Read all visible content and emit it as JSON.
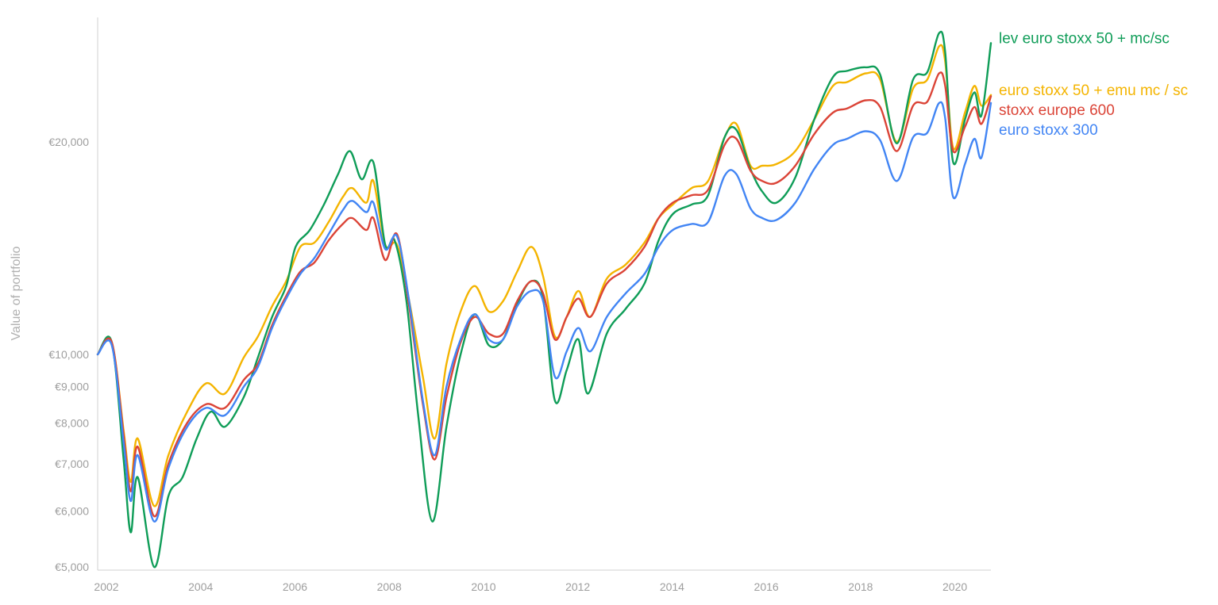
{
  "chart_data": {
    "type": "line",
    "title": "",
    "xlabel": "",
    "ylabel": "Value of portfolio",
    "y_scale": "log",
    "ylim": [
      4950,
      30000
    ],
    "xlim": [
      2002.0,
      2020.95
    ],
    "x_ticks": [
      {
        "value": 2002,
        "label": "2002"
      },
      {
        "value": 2004,
        "label": "2004"
      },
      {
        "value": 2006,
        "label": "2006"
      },
      {
        "value": 2008,
        "label": "2008"
      },
      {
        "value": 2010,
        "label": "2010"
      },
      {
        "value": 2012,
        "label": "2012"
      },
      {
        "value": 2014,
        "label": "2014"
      },
      {
        "value": 2016,
        "label": "2016"
      },
      {
        "value": 2018,
        "label": "2018"
      },
      {
        "value": 2020,
        "label": "2020"
      }
    ],
    "y_ticks": [
      {
        "value": 5000,
        "label": "€5,000"
      },
      {
        "value": 6000,
        "label": "€6,000"
      },
      {
        "value": 7000,
        "label": "€7,000"
      },
      {
        "value": 8000,
        "label": "€8,000"
      },
      {
        "value": 9000,
        "label": "€9,000"
      },
      {
        "value": 10000,
        "label": "€10,000"
      },
      {
        "value": 20000,
        "label": "€20,000"
      }
    ],
    "grid": false,
    "legend_position": "right, at line ends",
    "series": [
      {
        "name": "euro stoxx 50 + emu mc / sc",
        "color": "#f4b400",
        "points": [
          [
            2002.0,
            10000
          ],
          [
            2002.3,
            10400
          ],
          [
            2002.55,
            7800
          ],
          [
            2002.7,
            6600
          ],
          [
            2002.85,
            7600
          ],
          [
            2003.2,
            6100
          ],
          [
            2003.5,
            7200
          ],
          [
            2003.9,
            8300
          ],
          [
            2004.3,
            9100
          ],
          [
            2004.7,
            8800
          ],
          [
            2005.1,
            9900
          ],
          [
            2005.4,
            10600
          ],
          [
            2005.7,
            11700
          ],
          [
            2006.0,
            12700
          ],
          [
            2006.3,
            14200
          ],
          [
            2006.6,
            14400
          ],
          [
            2006.9,
            15400
          ],
          [
            2007.2,
            16700
          ],
          [
            2007.4,
            17200
          ],
          [
            2007.7,
            16400
          ],
          [
            2007.85,
            17600
          ],
          [
            2008.1,
            14300
          ],
          [
            2008.35,
            14300
          ],
          [
            2008.6,
            12000
          ],
          [
            2008.9,
            9300
          ],
          [
            2009.15,
            7600
          ],
          [
            2009.4,
            9700
          ],
          [
            2009.7,
            11500
          ],
          [
            2010.0,
            12500
          ],
          [
            2010.3,
            11500
          ],
          [
            2010.6,
            11900
          ],
          [
            2010.9,
            13100
          ],
          [
            2011.2,
            14200
          ],
          [
            2011.45,
            12900
          ],
          [
            2011.7,
            10600
          ],
          [
            2011.95,
            11300
          ],
          [
            2012.2,
            12300
          ],
          [
            2012.45,
            11300
          ],
          [
            2012.8,
            12800
          ],
          [
            2013.2,
            13400
          ],
          [
            2013.6,
            14400
          ],
          [
            2013.9,
            15600
          ],
          [
            2014.2,
            16300
          ],
          [
            2014.6,
            17200
          ],
          [
            2014.95,
            17600
          ],
          [
            2015.3,
            20300
          ],
          [
            2015.55,
            21200
          ],
          [
            2015.85,
            18500
          ],
          [
            2016.1,
            18500
          ],
          [
            2016.4,
            18600
          ],
          [
            2016.8,
            19400
          ],
          [
            2017.2,
            21500
          ],
          [
            2017.6,
            24000
          ],
          [
            2017.9,
            24300
          ],
          [
            2018.3,
            25000
          ],
          [
            2018.6,
            24500
          ],
          [
            2018.95,
            20000
          ],
          [
            2019.3,
            23800
          ],
          [
            2019.6,
            24500
          ],
          [
            2019.85,
            27300
          ],
          [
            2019.98,
            26000
          ],
          [
            2020.15,
            19600
          ],
          [
            2020.4,
            22000
          ],
          [
            2020.6,
            24000
          ],
          [
            2020.75,
            22500
          ],
          [
            2020.95,
            23300
          ]
        ]
      },
      {
        "name": "lev euro stoxx 50 + mc/sc",
        "color": "#0f9d58",
        "points": [
          [
            2002.0,
            10000
          ],
          [
            2002.3,
            10400
          ],
          [
            2002.55,
            7100
          ],
          [
            2002.7,
            5600
          ],
          [
            2002.85,
            6700
          ],
          [
            2003.2,
            5000
          ],
          [
            2003.5,
            6300
          ],
          [
            2003.8,
            6700
          ],
          [
            2004.1,
            7600
          ],
          [
            2004.4,
            8300
          ],
          [
            2004.7,
            7900
          ],
          [
            2005.1,
            8700
          ],
          [
            2005.4,
            9900
          ],
          [
            2005.7,
            11300
          ],
          [
            2006.0,
            12500
          ],
          [
            2006.2,
            14200
          ],
          [
            2006.5,
            15000
          ],
          [
            2006.8,
            16300
          ],
          [
            2007.1,
            18000
          ],
          [
            2007.35,
            19400
          ],
          [
            2007.6,
            17700
          ],
          [
            2007.85,
            18700
          ],
          [
            2008.1,
            14300
          ],
          [
            2008.3,
            14500
          ],
          [
            2008.55,
            11900
          ],
          [
            2008.8,
            8200
          ],
          [
            2009.1,
            5800
          ],
          [
            2009.4,
            7900
          ],
          [
            2009.7,
            10000
          ],
          [
            2010.0,
            11400
          ],
          [
            2010.3,
            10300
          ],
          [
            2010.6,
            10500
          ],
          [
            2010.9,
            11800
          ],
          [
            2011.2,
            12700
          ],
          [
            2011.45,
            12000
          ],
          [
            2011.7,
            8600
          ],
          [
            2011.95,
            9500
          ],
          [
            2012.2,
            10500
          ],
          [
            2012.4,
            8800
          ],
          [
            2012.8,
            10700
          ],
          [
            2013.2,
            11600
          ],
          [
            2013.6,
            12600
          ],
          [
            2013.9,
            14500
          ],
          [
            2014.2,
            15800
          ],
          [
            2014.6,
            16300
          ],
          [
            2014.95,
            16800
          ],
          [
            2015.3,
            20300
          ],
          [
            2015.55,
            20800
          ],
          [
            2015.85,
            18300
          ],
          [
            2016.1,
            17000
          ],
          [
            2016.4,
            16400
          ],
          [
            2016.8,
            17800
          ],
          [
            2017.2,
            21500
          ],
          [
            2017.6,
            24700
          ],
          [
            2017.9,
            25200
          ],
          [
            2018.3,
            25500
          ],
          [
            2018.6,
            24900
          ],
          [
            2018.95,
            19900
          ],
          [
            2019.3,
            24500
          ],
          [
            2019.6,
            25100
          ],
          [
            2019.85,
            28500
          ],
          [
            2019.98,
            26800
          ],
          [
            2020.15,
            18700
          ],
          [
            2020.4,
            21500
          ],
          [
            2020.6,
            23500
          ],
          [
            2020.75,
            21800
          ],
          [
            2020.95,
            27600
          ]
        ]
      },
      {
        "name": "stoxx europe 600",
        "color": "#db4437",
        "points": [
          [
            2002.0,
            10000
          ],
          [
            2002.3,
            10400
          ],
          [
            2002.55,
            7700
          ],
          [
            2002.7,
            6400
          ],
          [
            2002.85,
            7400
          ],
          [
            2003.2,
            5900
          ],
          [
            2003.5,
            7000
          ],
          [
            2003.9,
            8000
          ],
          [
            2004.3,
            8500
          ],
          [
            2004.7,
            8400
          ],
          [
            2005.1,
            9200
          ],
          [
            2005.4,
            9700
          ],
          [
            2005.7,
            11000
          ],
          [
            2006.0,
            12100
          ],
          [
            2006.3,
            13100
          ],
          [
            2006.6,
            13500
          ],
          [
            2006.9,
            14500
          ],
          [
            2007.2,
            15300
          ],
          [
            2007.4,
            15600
          ],
          [
            2007.7,
            15000
          ],
          [
            2007.85,
            15600
          ],
          [
            2008.1,
            13600
          ],
          [
            2008.35,
            14800
          ],
          [
            2008.6,
            11800
          ],
          [
            2008.9,
            8500
          ],
          [
            2009.15,
            7100
          ],
          [
            2009.4,
            8700
          ],
          [
            2009.7,
            10400
          ],
          [
            2010.0,
            11300
          ],
          [
            2010.3,
            10700
          ],
          [
            2010.6,
            10700
          ],
          [
            2010.9,
            11900
          ],
          [
            2011.2,
            12700
          ],
          [
            2011.45,
            12200
          ],
          [
            2011.7,
            10500
          ],
          [
            2011.95,
            11300
          ],
          [
            2012.2,
            12000
          ],
          [
            2012.45,
            11300
          ],
          [
            2012.8,
            12600
          ],
          [
            2013.2,
            13200
          ],
          [
            2013.6,
            14200
          ],
          [
            2013.9,
            15600
          ],
          [
            2014.2,
            16400
          ],
          [
            2014.6,
            16800
          ],
          [
            2014.95,
            17100
          ],
          [
            2015.3,
            19800
          ],
          [
            2015.55,
            20200
          ],
          [
            2015.85,
            18200
          ],
          [
            2016.1,
            17600
          ],
          [
            2016.4,
            17500
          ],
          [
            2016.8,
            18500
          ],
          [
            2017.2,
            20500
          ],
          [
            2017.6,
            22000
          ],
          [
            2017.9,
            22300
          ],
          [
            2018.3,
            22900
          ],
          [
            2018.6,
            22400
          ],
          [
            2018.95,
            19400
          ],
          [
            2019.3,
            22500
          ],
          [
            2019.6,
            22800
          ],
          [
            2019.85,
            25000
          ],
          [
            2019.98,
            24000
          ],
          [
            2020.15,
            19400
          ],
          [
            2020.4,
            21000
          ],
          [
            2020.6,
            22400
          ],
          [
            2020.75,
            21200
          ],
          [
            2020.95,
            23200
          ]
        ]
      },
      {
        "name": "euro stoxx 300",
        "color": "#4285f4",
        "points": [
          [
            2002.0,
            10000
          ],
          [
            2002.3,
            10300
          ],
          [
            2002.55,
            7500
          ],
          [
            2002.7,
            6200
          ],
          [
            2002.85,
            7200
          ],
          [
            2003.2,
            5800
          ],
          [
            2003.5,
            6900
          ],
          [
            2003.9,
            7900
          ],
          [
            2004.3,
            8400
          ],
          [
            2004.7,
            8200
          ],
          [
            2005.1,
            9000
          ],
          [
            2005.4,
            9600
          ],
          [
            2005.7,
            10900
          ],
          [
            2006.0,
            12000
          ],
          [
            2006.3,
            13000
          ],
          [
            2006.6,
            13700
          ],
          [
            2006.9,
            14800
          ],
          [
            2007.2,
            16000
          ],
          [
            2007.4,
            16500
          ],
          [
            2007.7,
            15900
          ],
          [
            2007.85,
            16400
          ],
          [
            2008.1,
            14100
          ],
          [
            2008.35,
            14700
          ],
          [
            2008.6,
            12000
          ],
          [
            2008.9,
            8600
          ],
          [
            2009.15,
            7200
          ],
          [
            2009.4,
            9000
          ],
          [
            2009.7,
            10500
          ],
          [
            2010.0,
            11400
          ],
          [
            2010.3,
            10500
          ],
          [
            2010.6,
            10500
          ],
          [
            2010.9,
            11700
          ],
          [
            2011.2,
            12300
          ],
          [
            2011.45,
            11900
          ],
          [
            2011.7,
            9300
          ],
          [
            2011.95,
            10100
          ],
          [
            2012.2,
            10900
          ],
          [
            2012.45,
            10100
          ],
          [
            2012.8,
            11300
          ],
          [
            2013.2,
            12200
          ],
          [
            2013.6,
            13000
          ],
          [
            2013.9,
            14200
          ],
          [
            2014.2,
            15000
          ],
          [
            2014.6,
            15300
          ],
          [
            2014.95,
            15400
          ],
          [
            2015.3,
            17900
          ],
          [
            2015.55,
            18000
          ],
          [
            2015.85,
            16100
          ],
          [
            2016.1,
            15600
          ],
          [
            2016.4,
            15500
          ],
          [
            2016.8,
            16400
          ],
          [
            2017.2,
            18300
          ],
          [
            2017.6,
            19800
          ],
          [
            2017.9,
            20200
          ],
          [
            2018.3,
            20700
          ],
          [
            2018.6,
            20100
          ],
          [
            2018.95,
            17600
          ],
          [
            2019.3,
            20300
          ],
          [
            2019.6,
            20600
          ],
          [
            2019.85,
            22700
          ],
          [
            2019.98,
            21600
          ],
          [
            2020.15,
            16700
          ],
          [
            2020.4,
            18600
          ],
          [
            2020.6,
            20200
          ],
          [
            2020.75,
            19000
          ],
          [
            2020.95,
            22700
          ]
        ]
      }
    ]
  }
}
